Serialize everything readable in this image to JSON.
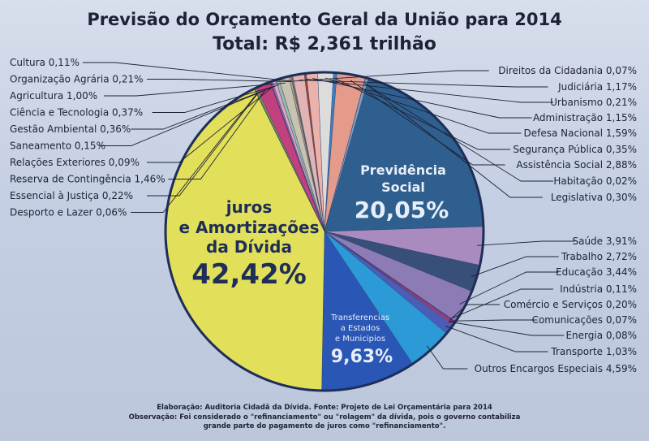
{
  "header": {
    "title": "Previsão do Orçamento Geral da União para 2014",
    "total": "Total: R$ 2,361 trilhão"
  },
  "chart_data": {
    "type": "pie",
    "title": "Previsão do Orçamento Geral da União para 2014",
    "subtitle": "Total: R$ 2,361 trilhão",
    "slices": [
      {
        "label": "Previdência Social",
        "value": 20.05,
        "display": "20,05%",
        "color": "#2e5f8f"
      },
      {
        "label": "Saúde",
        "value": 3.91,
        "display": "3,91%",
        "color": "#a98bc0"
      },
      {
        "label": "Trabalho",
        "value": 2.72,
        "display": "2,72%",
        "color": "#384f7a"
      },
      {
        "label": "Educação",
        "value": 3.44,
        "display": "3,44%",
        "color": "#8c7bb5"
      },
      {
        "label": "Indústria",
        "value": 0.11,
        "display": "0,11%",
        "color": "#6a3f86"
      },
      {
        "label": "Comércio e Serviços",
        "value": 0.2,
        "display": "0,20%",
        "color": "#aa3d83"
      },
      {
        "label": "Comunicações",
        "value": 0.07,
        "display": "0,07%",
        "color": "#d3417a"
      },
      {
        "label": "Energia",
        "value": 0.08,
        "display": "0,08%",
        "color": "#e86a9a"
      },
      {
        "label": "Transporte",
        "value": 1.03,
        "display": "1,03%",
        "color": "#4a5db8"
      },
      {
        "label": "Outros Encargos Especiais",
        "value": 4.59,
        "display": "4,59%",
        "color": "#2b9ad6"
      },
      {
        "label": "Transferencias a Estados e Municípios",
        "value": 9.63,
        "display": "9,63%",
        "color": "#2a56b6"
      },
      {
        "label": "juros e Amortizações da Dívida",
        "value": 42.42,
        "display": "42,42%",
        "color": "#e2df5b"
      },
      {
        "label": "Desporto e Lazer",
        "value": 0.06,
        "display": "0,06%",
        "color": "#9aa23a"
      },
      {
        "label": "Essencial à Justiça",
        "value": 0.22,
        "display": "0,22%",
        "color": "#7b8e55"
      },
      {
        "label": "Reserva de Contingência",
        "value": 1.46,
        "display": "1,46%",
        "color": "#c1407d"
      },
      {
        "label": "Relações Exteriores",
        "value": 0.09,
        "display": "0,09%",
        "color": "#6f4f8e"
      },
      {
        "label": "Saneamento",
        "value": 0.15,
        "display": "0,15%",
        "color": "#b86aa6"
      },
      {
        "label": "Gestão Ambiental",
        "value": 0.36,
        "display": "0,36%",
        "color": "#d9a8c8"
      },
      {
        "label": "Ciência e Tecnologia",
        "value": 0.37,
        "display": "0,37%",
        "color": "#98b8a8"
      },
      {
        "label": "Agricultura",
        "value": 1.0,
        "display": "1,00%",
        "color": "#c8c3b0"
      },
      {
        "label": "Organização Agrária",
        "value": 0.21,
        "display": "0,21%",
        "color": "#b0a07a"
      },
      {
        "label": "Cultura",
        "value": 0.11,
        "display": "0,11%",
        "color": "#8f7e5a"
      },
      {
        "label": "Direitos da Cidadania",
        "value": 0.07,
        "display": "0,07%",
        "color": "#c9b2a6"
      },
      {
        "label": "Judiciária",
        "value": 1.17,
        "display": "1,17%",
        "color": "#e2b3b3"
      },
      {
        "label": "Urbanismo",
        "value": 0.21,
        "display": "0,21%",
        "color": "#a7452f"
      },
      {
        "label": "Administração",
        "value": 1.15,
        "display": "1,15%",
        "color": "#ebb2ac"
      },
      {
        "label": "Defesa Nacional",
        "value": 1.59,
        "display": "1,59%",
        "color": "#dcdcdc"
      },
      {
        "label": "Segurança Pública",
        "value": 0.35,
        "display": "0,35%",
        "color": "#3c7fc0"
      },
      {
        "label": "Assistência Social",
        "value": 2.88,
        "display": "2,88%",
        "color": "#e59b8c"
      },
      {
        "label": "Habitação",
        "value": 0.02,
        "display": "0,02%",
        "color": "#7a3050"
      },
      {
        "label": "Legislativa",
        "value": 0.3,
        "display": "0,30%",
        "color": "#7ea1c6"
      }
    ],
    "inside_labels": {
      "previdencia_l1": "Previdência",
      "previdencia_l2": "Social",
      "previdencia_pct": "20,05%",
      "juros_l1": "juros",
      "juros_l2": "e Amortizações",
      "juros_l3": "da Dívida",
      "juros_pct": "42,42%",
      "transf_l1": "Transferencias",
      "transf_l2": "a Estados",
      "transf_l3": "e Municipios",
      "transf_pct": "9,63%"
    },
    "left_labels": [
      {
        "text": "Cultura 0,11%"
      },
      {
        "text": "Organização Agrária 0,21%"
      },
      {
        "text": "Agricultura 1,00%"
      },
      {
        "text": "Ciência e Tecnologia 0,37%"
      },
      {
        "text": "Gestão Ambiental 0,36%"
      },
      {
        "text": "Saneamento 0,15%"
      },
      {
        "text": "Relações Exteriores 0,09%"
      },
      {
        "text": "Reserva de Contingência 1,46%"
      },
      {
        "text": "Essencial à Justiça 0,22%"
      },
      {
        "text": "Desporto e Lazer 0,06%"
      }
    ],
    "right_labels": [
      {
        "text": "Direitos da Cidadania 0,07%"
      },
      {
        "text": "Judiciária 1,17%"
      },
      {
        "text": "Urbanismo 0,21%"
      },
      {
        "text": "Administração 1,15%"
      },
      {
        "text": "Defesa Nacional 1,59%"
      },
      {
        "text": "Segurança Pública 0,35%"
      },
      {
        "text": "Assistência Social 2,88%"
      },
      {
        "text": "Habitação 0,02%"
      },
      {
        "text": "Legislativa 0,30%"
      },
      {
        "text": "Saúde 3,91%"
      },
      {
        "text": "Trabalho 2,72%"
      },
      {
        "text": "Educação 3,44%"
      },
      {
        "text": "Indústria 0,11%"
      },
      {
        "text": "Comércio e Serviços 0,20%"
      },
      {
        "text": "Comunicações 0,07%"
      },
      {
        "text": "Energia 0,08%"
      },
      {
        "text": "Transporte 1,03%"
      },
      {
        "text": "Outros Encargos Especiais 4,59%"
      }
    ]
  },
  "footer": {
    "line1": "Elaboração: Auditoria Cidadã da Dívida. Fonte: Projeto de Lei Orçamentária para 2014",
    "line2": "Observação: Foi considerado o \"refinanciamento\" ou \"rolagem\" da dívida, pois o governo contabiliza",
    "line3": "grande parte do pagamento de juros como \"refinanciamento\"."
  }
}
